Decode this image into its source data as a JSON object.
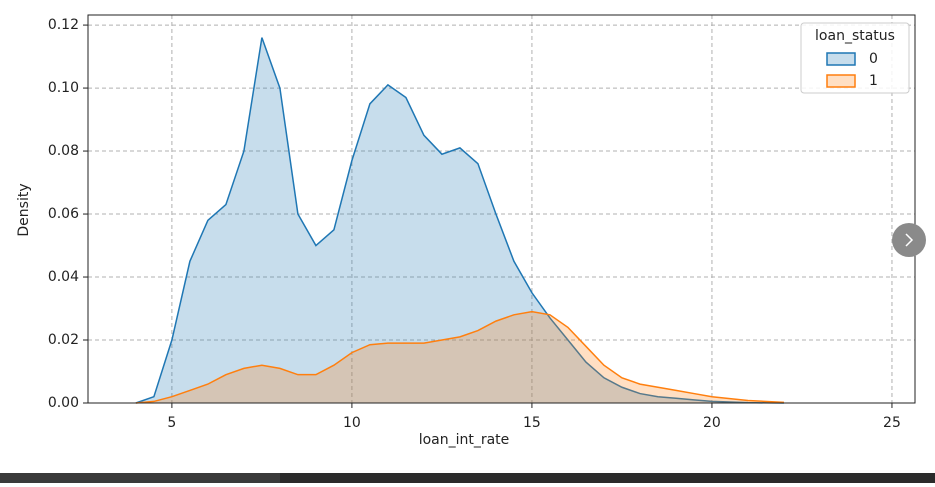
{
  "chart_data": {
    "type": "kde",
    "xlabel": "loan_int_rate",
    "ylabel": "Density",
    "x": [
      4,
      4.5,
      5,
      5.5,
      6,
      6.5,
      7,
      7.5,
      8,
      8.5,
      9,
      9.5,
      10,
      10.5,
      11,
      11.5,
      12,
      12.5,
      13,
      13.5,
      14,
      14.5,
      15,
      15.5,
      16,
      16.5,
      17,
      17.5,
      18,
      18.5,
      19,
      19.5,
      20,
      21,
      22
    ],
    "series": [
      {
        "name": "0",
        "color": "#1f77b4",
        "values": [
          0,
          0.002,
          0.02,
          0.045,
          0.058,
          0.063,
          0.08,
          0.116,
          0.1,
          0.06,
          0.05,
          0.055,
          0.077,
          0.095,
          0.101,
          0.097,
          0.085,
          0.079,
          0.081,
          0.076,
          0.06,
          0.045,
          0.035,
          0.027,
          0.02,
          0.013,
          0.008,
          0.005,
          0.003,
          0.002,
          0.0015,
          0.001,
          0.0005,
          0.0001,
          0
        ]
      },
      {
        "name": "1",
        "color": "#ff7f0e",
        "values": [
          0,
          0.0005,
          0.002,
          0.004,
          0.006,
          0.009,
          0.011,
          0.012,
          0.011,
          0.009,
          0.009,
          0.012,
          0.016,
          0.0185,
          0.019,
          0.019,
          0.019,
          0.02,
          0.021,
          0.023,
          0.026,
          0.028,
          0.029,
          0.028,
          0.024,
          0.018,
          0.012,
          0.008,
          0.006,
          0.005,
          0.004,
          0.003,
          0.002,
          0.0008,
          0.0002
        ]
      }
    ],
    "legend_title": "loan_status",
    "legend": "upper right",
    "grid": true,
    "xlim": [
      2.67,
      25.64
    ],
    "ylim": [
      0,
      0.1232
    ],
    "xticks": [
      5,
      10,
      15,
      20,
      25
    ],
    "yticks": [
      {
        "value": 0,
        "label": "0.00"
      },
      {
        "value": 0.02,
        "label": "0.02"
      },
      {
        "value": 0.04,
        "label": "0.04"
      },
      {
        "value": 0.06,
        "label": "0.06"
      },
      {
        "value": 0.08,
        "label": "0.08"
      },
      {
        "value": 0.1,
        "label": "0.10"
      },
      {
        "value": 0.12,
        "label": "0.12"
      }
    ]
  }
}
